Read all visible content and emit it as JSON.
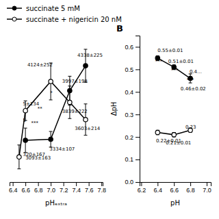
{
  "chart_data": [
    {
      "type": "line",
      "xlabel": "pHₑₓₜᵣₐ",
      "xlim": [
        6.35,
        7.82
      ],
      "ylim": [
        2750,
        4750
      ],
      "xticks": [
        6.4,
        6.6,
        6.8,
        {
          "value": 7,
          "label": "7.0"
        },
        7.2,
        7.4,
        7.6,
        7.8
      ],
      "tick_labels": "x",
      "legend": "top",
      "series": [
        {
          "name": "succinate 5 mM",
          "color": "#000000",
          "marker": "circle",
          "x": [
            6.6,
            7.0,
            7.3,
            7.55
          ],
          "values": [
            3320,
            3334,
            3997,
            4338
          ],
          "yerr": [
            167,
            107,
            198,
            225
          ]
        },
        {
          "name": "succinate + nigericin 20 nM",
          "color": "#000000",
          "marker": "open-circle",
          "x": [
            6.5,
            6.6,
            7.0,
            7.3,
            7.55
          ],
          "values": [
            3093,
            3725,
            4124,
            3839,
            3603
          ],
          "yerr": [
            163,
            134,
            252,
            222,
            214
          ]
        }
      ],
      "annotations": [
        {
          "x": 6.63,
          "y": 4350,
          "text": "4124±252"
        },
        {
          "x": 7.18,
          "y": 4130,
          "text": "3997±198"
        },
        {
          "x": 7.42,
          "y": 4480,
          "text": "4338±225"
        },
        {
          "x": 6.98,
          "y": 3200,
          "text": "3334±107"
        },
        {
          "x": 6.6,
          "y": 3080,
          "text": "3093±163"
        },
        {
          "x": 7.18,
          "y": 3720,
          "text": "3839±222"
        },
        {
          "x": 7.38,
          "y": 3480,
          "text": "3603±214"
        },
        {
          "x": 6.56,
          "y": 3820,
          "text": "5±134"
        },
        {
          "x": 6.56,
          "y": 3600,
          "text": "5"
        },
        {
          "x": 6.56,
          "y": 3130,
          "text": "320±167"
        },
        {
          "x": 6.99,
          "y": 3970,
          "text": "*"
        },
        {
          "x": 6.79,
          "y": 3750,
          "text": "**"
        },
        {
          "x": 6.69,
          "y": 3560,
          "text": "***"
        }
      ]
    },
    {
      "type": "line",
      "title": "B",
      "xlabel": "pH",
      "ylabel": "ΔpH",
      "xlim": [
        6.18,
        7.05
      ],
      "ylim": [
        0.0,
        0.65
      ],
      "xticks": [
        6.2,
        6.4,
        6.6,
        6.8,
        {
          "value": 7,
          "label": "7.0"
        }
      ],
      "yticks": [
        {
          "value": 0,
          "label": "0.0"
        },
        0.1,
        0.2,
        0.3,
        0.4,
        0.5,
        0.6
      ],
      "series": [
        {
          "color": "#000000",
          "marker": "circle",
          "x": [
            6.4,
            6.6,
            6.8
          ],
          "values": [
            0.55,
            0.51,
            0.46
          ],
          "yerr": [
            0.01,
            0.01,
            0.02
          ]
        },
        {
          "color": "#000000",
          "marker": "open-circle",
          "x": [
            6.4,
            6.6,
            6.8
          ],
          "values": [
            0.22,
            0.21,
            0.23
          ],
          "yerr": [
            0.01,
            0.01,
            0.01
          ]
        }
      ],
      "annotations": [
        {
          "x": 6.4,
          "y": 0.585,
          "text": "0.55±0.01"
        },
        {
          "x": 6.53,
          "y": 0.535,
          "text": "0.51±0.01"
        },
        {
          "x": 6.68,
          "y": 0.415,
          "text": "0.46±0.02"
        },
        {
          "x": 6.79,
          "y": 0.49,
          "text": "0.4…"
        },
        {
          "x": 6.38,
          "y": 0.185,
          "text": "0.22±0.01"
        },
        {
          "x": 6.5,
          "y": 0.175,
          "text": "0.21±0.01"
        },
        {
          "x": 6.74,
          "y": 0.245,
          "text": "0.23"
        },
        {
          "x": 6.37,
          "y": 0.535,
          "text": "***"
        },
        {
          "x": 6.565,
          "y": 0.495,
          "text": "***"
        },
        {
          "x": 6.755,
          "y": 0.455,
          "text": "***"
        }
      ]
    }
  ]
}
